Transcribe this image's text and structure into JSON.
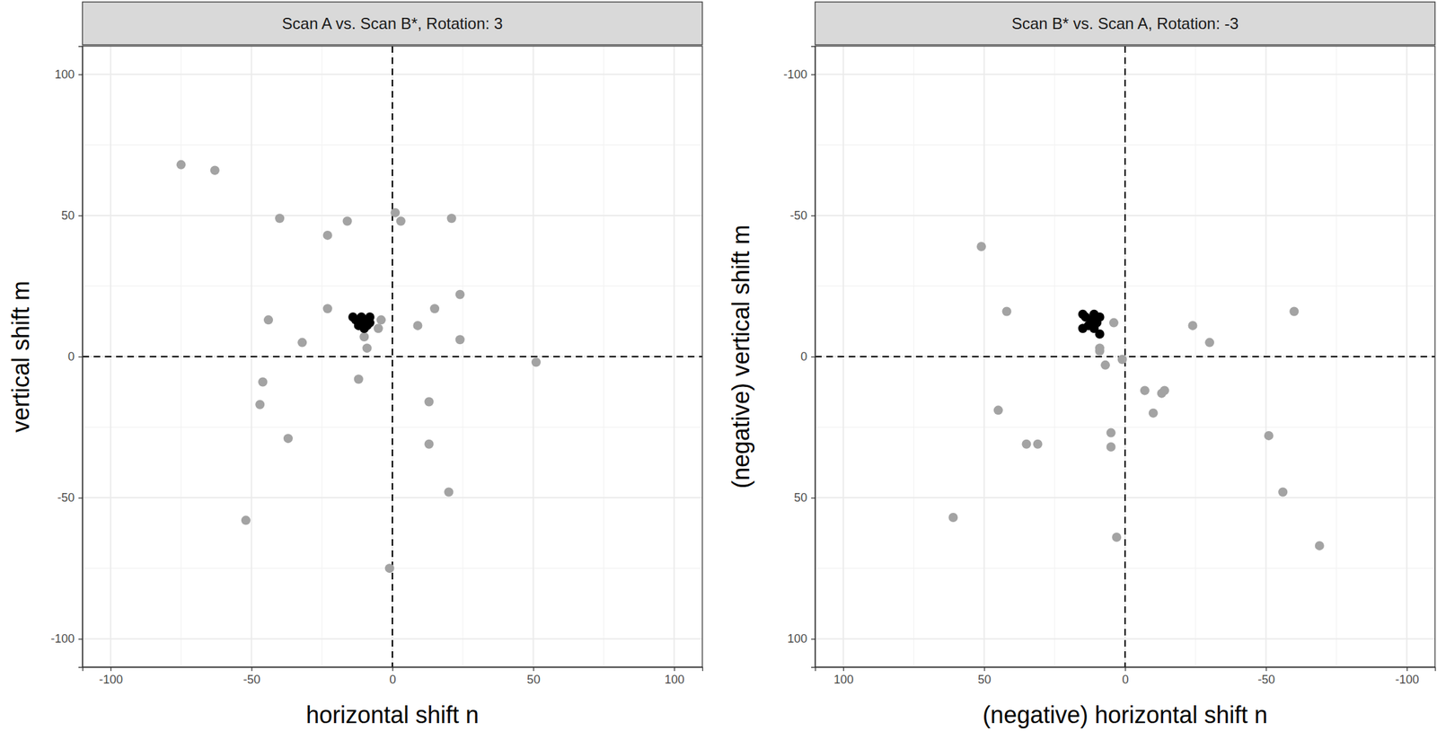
{
  "chart_data": [
    {
      "type": "scatter",
      "title": "Scan A vs. Scan B*, Rotation: 3",
      "x_label": "horizontal shift n",
      "y_label": "vertical shift m",
      "xlim": [
        -110,
        110
      ],
      "ylim": [
        -110,
        110
      ],
      "xticks": [
        -100,
        -50,
        0,
        50,
        100
      ],
      "yticks": [
        -100,
        -50,
        0,
        50,
        100
      ],
      "grid": true,
      "vlines": [
        0
      ],
      "hlines": [
        0
      ],
      "line_style": "dashed",
      "series": [
        {
          "color": "#a3a3a3",
          "marker": "circle",
          "x": [
            -75,
            -63,
            -40,
            -16,
            -23,
            1,
            3,
            21,
            -23,
            -4,
            -5,
            -10,
            -9,
            -44,
            -32,
            15,
            9,
            24,
            24,
            51,
            -12,
            -46,
            -47,
            -37,
            13,
            13,
            20,
            -52,
            -1
          ],
          "values": [
            68,
            66,
            49,
            48,
            43,
            51,
            48,
            49,
            17,
            13,
            10,
            7,
            3,
            13,
            5,
            17,
            11,
            22,
            6,
            -2,
            -8,
            -9,
            -17,
            -29,
            -16,
            -31,
            -48,
            -58,
            -75
          ]
        },
        {
          "color": "#000000",
          "marker": "circle",
          "x": [
            -14,
            -13,
            -12,
            -11,
            -10,
            -9,
            -8,
            -9,
            -12,
            -10,
            -8
          ],
          "values": [
            14,
            13,
            12,
            14,
            12,
            11,
            14,
            13,
            11,
            10,
            12
          ]
        }
      ]
    },
    {
      "type": "scatter",
      "title": "Scan B* vs. Scan A, Rotation: -3",
      "x_label": "(negative) horizontal shift n",
      "y_label": "(negative) vertical shift m",
      "xlim": [
        110,
        -110
      ],
      "ylim": [
        110,
        -110
      ],
      "xticks": [
        100,
        50,
        0,
        -50,
        -100
      ],
      "yticks": [
        100,
        50,
        0,
        -50,
        -100
      ],
      "grid": true,
      "vlines": [
        0
      ],
      "hlines": [
        0
      ],
      "line_style": "dashed",
      "series": [
        {
          "color": "#a3a3a3",
          "marker": "circle",
          "x": [
            51,
            42,
            4,
            9,
            9,
            7,
            1,
            -7,
            -24,
            -30,
            -60,
            -10,
            -13,
            -14,
            5,
            5,
            35,
            31,
            45,
            61,
            3,
            -51,
            -56,
            -69
          ],
          "values": [
            -39,
            -16,
            -12,
            -3,
            -2,
            3,
            1,
            12,
            -11,
            -5,
            -16,
            20,
            13,
            12,
            27,
            32,
            31,
            31,
            19,
            57,
            64,
            28,
            48,
            67
          ]
        },
        {
          "color": "#000000",
          "marker": "circle",
          "x": [
            15,
            14,
            12,
            11,
            10,
            13,
            15,
            9,
            11,
            9,
            12
          ],
          "values": [
            -15,
            -14,
            -13,
            -15,
            -12,
            -11,
            -10,
            -14,
            -10,
            -8,
            -12
          ]
        }
      ]
    }
  ]
}
